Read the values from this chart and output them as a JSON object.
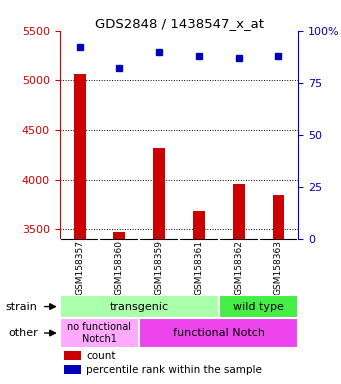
{
  "title": "GDS2848 / 1438547_x_at",
  "samples": [
    "GSM158357",
    "GSM158360",
    "GSM158359",
    "GSM158361",
    "GSM158362",
    "GSM158363"
  ],
  "counts": [
    5060,
    3470,
    4320,
    3680,
    3960,
    3850
  ],
  "percentile_pct": [
    92,
    82,
    90,
    88,
    87,
    88
  ],
  "ylim_left": [
    3400,
    5500
  ],
  "ylim_right": [
    0,
    100
  ],
  "yticks_left": [
    3500,
    4000,
    4500,
    5000,
    5500
  ],
  "yticks_right": [
    0,
    25,
    50,
    75,
    100
  ],
  "bar_color": "#cc0000",
  "dot_color": "#0000bb",
  "tick_color_left": "#cc0000",
  "tick_color_right": "#0000bb",
  "bg_color": "#cccccc",
  "strain_transgenic_color": "#aaffaa",
  "strain_wildtype_color": "#44ee44",
  "other_nofunc_color": "#ffaaff",
  "other_func_color": "#ee44ee",
  "legend_count_color": "#cc0000",
  "legend_pct_color": "#0000bb",
  "n_samples": 6,
  "transgenic_count": 4,
  "nofunc_count": 2
}
